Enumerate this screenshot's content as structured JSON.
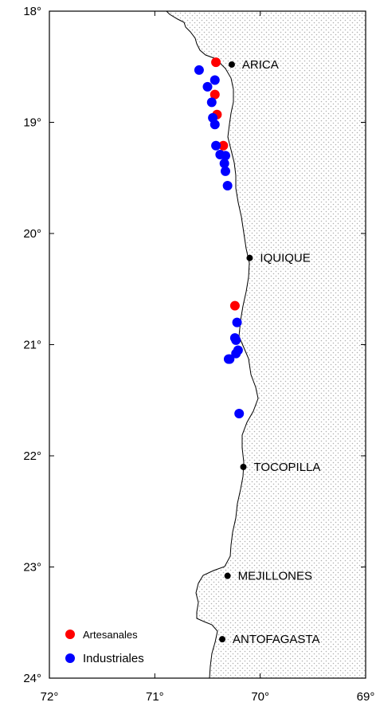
{
  "chart_data": {
    "type": "scatter",
    "lat_ticks": [
      "18°",
      "19°",
      "20°",
      "21°",
      "22°",
      "23°",
      "24°"
    ],
    "lon_ticks": [
      "72°",
      "71°",
      "70°",
      "69°"
    ],
    "lat_range": [
      18,
      24
    ],
    "lon_range": [
      -72,
      -69
    ],
    "cities": [
      {
        "name": "ARICA",
        "lon": -70.27,
        "lat": 18.48
      },
      {
        "name": "IQUIQUE",
        "lon": -70.1,
        "lat": 20.22
      },
      {
        "name": "TOCOPILLA",
        "lon": -70.16,
        "lat": 22.1
      },
      {
        "name": "MEJILLONES",
        "lon": -70.31,
        "lat": 23.08
      },
      {
        "name": "ANTOFAGASTA",
        "lon": -70.36,
        "lat": 23.65
      }
    ],
    "series": [
      {
        "name": "Artesanales",
        "color": "#ff0000",
        "points": [
          {
            "lon": -70.42,
            "lat": 18.46
          },
          {
            "lon": -70.43,
            "lat": 18.75
          },
          {
            "lon": -70.41,
            "lat": 18.93
          },
          {
            "lon": -70.35,
            "lat": 19.21
          },
          {
            "lon": -70.24,
            "lat": 20.65
          }
        ]
      },
      {
        "name": "Industriales",
        "color": "#0000ff",
        "points": [
          {
            "lon": -70.58,
            "lat": 18.53
          },
          {
            "lon": -70.43,
            "lat": 18.62
          },
          {
            "lon": -70.5,
            "lat": 18.68
          },
          {
            "lon": -70.46,
            "lat": 18.82
          },
          {
            "lon": -70.45,
            "lat": 18.96
          },
          {
            "lon": -70.43,
            "lat": 19.02
          },
          {
            "lon": -70.42,
            "lat": 19.21
          },
          {
            "lon": -70.38,
            "lat": 19.29
          },
          {
            "lon": -70.33,
            "lat": 19.3
          },
          {
            "lon": -70.34,
            "lat": 19.37
          },
          {
            "lon": -70.33,
            "lat": 19.44
          },
          {
            "lon": -70.31,
            "lat": 19.57
          },
          {
            "lon": -70.22,
            "lat": 20.8
          },
          {
            "lon": -70.24,
            "lat": 20.94
          },
          {
            "lon": -70.23,
            "lat": 20.96
          },
          {
            "lon": -70.21,
            "lat": 21.05
          },
          {
            "lon": -70.23,
            "lat": 21.08
          },
          {
            "lon": -70.29,
            "lat": 21.13
          },
          {
            "lon": -70.3,
            "lat": 21.13
          },
          {
            "lon": -70.2,
            "lat": 21.62
          }
        ]
      }
    ],
    "legend_placement": "bottom-left",
    "land_fill": "stippled gray pattern"
  }
}
